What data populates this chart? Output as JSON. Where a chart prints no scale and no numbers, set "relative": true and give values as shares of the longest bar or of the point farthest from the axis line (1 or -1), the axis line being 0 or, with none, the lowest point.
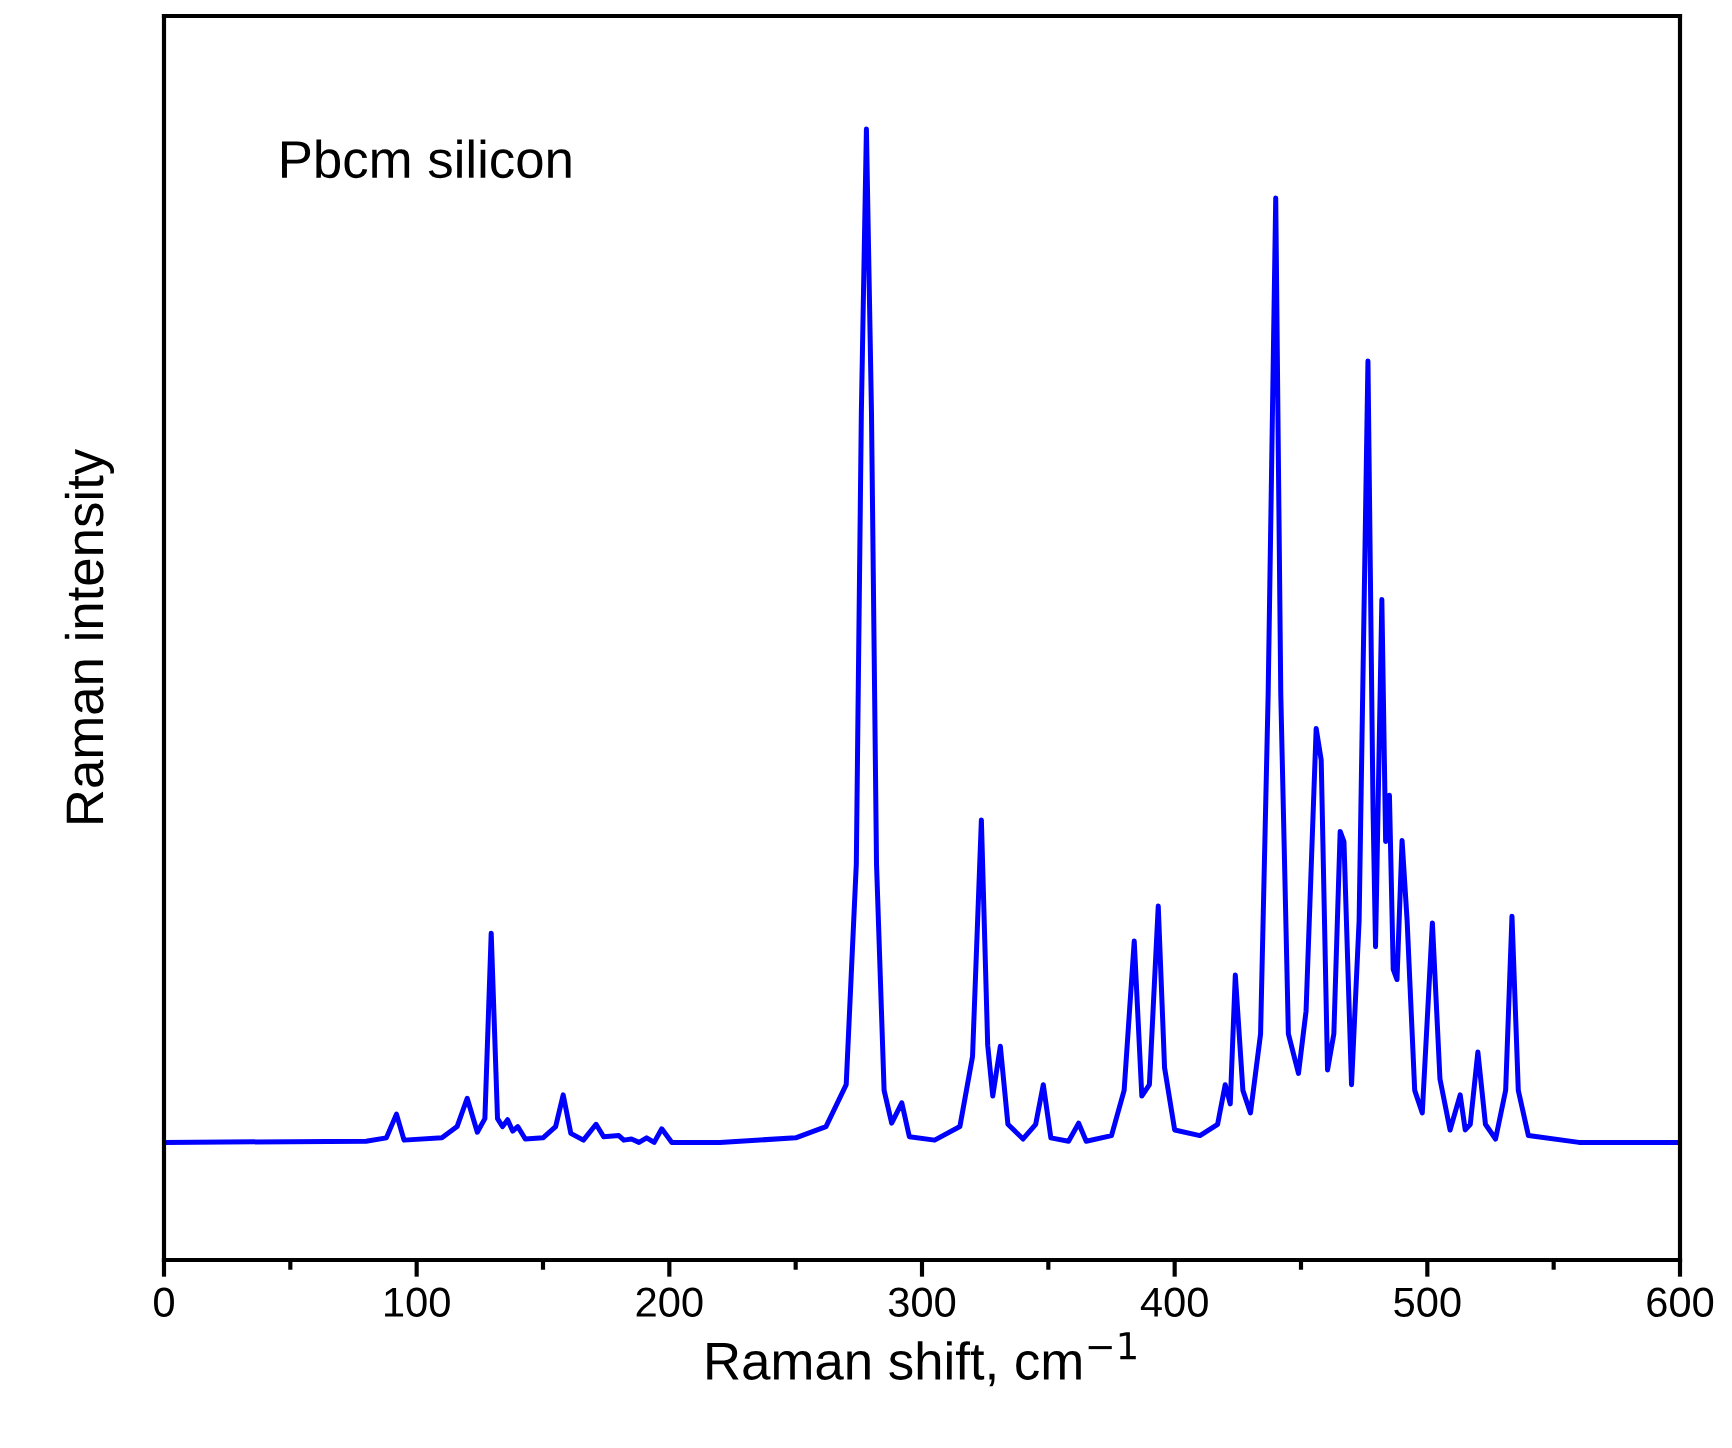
{
  "chart_data": {
    "type": "line",
    "relative": true,
    "xlabel": "Raman shift, cm$^{−1}$",
    "ylabel": "Raman intensity",
    "annotations": [
      "Pbcm silicon"
    ],
    "xlim": [
      0,
      600
    ],
    "xticks": [
      0,
      {
        "value": 50,
        "label": null
      },
      100,
      {
        "value": 150,
        "label": null
      },
      200,
      {
        "value": 250,
        "label": null
      },
      300,
      {
        "value": 350,
        "label": null
      },
      400,
      {
        "value": 450,
        "label": null
      },
      500,
      {
        "value": 550,
        "label": null
      },
      600
    ],
    "grid": false,
    "marker": "none",
    "line_style": "solid",
    "series": [
      {
        "color": "#0000ff",
        "x": [
          0,
          80,
          88,
          92,
          95,
          110,
          116,
          120,
          124,
          127,
          129.5,
          132,
          134,
          136,
          138,
          140,
          143,
          150,
          155,
          158,
          161,
          166,
          171,
          174,
          180,
          182,
          185,
          188,
          191,
          194,
          197,
          201,
          220,
          250,
          262,
          270,
          274,
          276,
          278,
          280,
          282,
          285,
          288,
          292,
          295,
          305,
          315,
          320,
          323.5,
          326,
          328,
          331,
          334,
          340,
          345,
          348,
          351,
          358,
          362,
          365,
          375,
          380,
          384,
          387,
          390,
          393.5,
          396,
          400,
          410,
          417,
          420,
          422,
          424,
          427,
          430,
          434,
          437,
          440,
          442,
          445,
          449,
          452,
          456,
          458,
          460.5,
          463,
          465.5,
          467,
          470,
          473,
          476.5,
          478.5,
          479.5,
          482,
          483.5,
          485,
          486.5,
          488,
          490,
          492,
          495,
          498,
          502,
          505,
          509,
          513,
          515,
          517,
          520,
          523,
          527,
          531,
          533.5,
          536,
          540,
          560,
          600
        ],
        "values": [
          0.104,
          0.105,
          0.108,
          0.129,
          0.106,
          0.108,
          0.118,
          0.143,
          0.113,
          0.125,
          0.289,
          0.125,
          0.118,
          0.124,
          0.114,
          0.118,
          0.107,
          0.108,
          0.118,
          0.146,
          0.112,
          0.106,
          0.12,
          0.109,
          0.11,
          0.106,
          0.107,
          0.104,
          0.108,
          0.104,
          0.116,
          0.104,
          0.104,
          0.108,
          0.118,
          0.155,
          0.35,
          0.75,
          1.0,
          0.75,
          0.35,
          0.15,
          0.121,
          0.139,
          0.109,
          0.106,
          0.118,
          0.18,
          0.389,
          0.19,
          0.145,
          0.189,
          0.12,
          0.107,
          0.12,
          0.155,
          0.108,
          0.105,
          0.121,
          0.105,
          0.11,
          0.15,
          0.282,
          0.145,
          0.155,
          0.313,
          0.17,
          0.115,
          0.11,
          0.12,
          0.155,
          0.138,
          0.252,
          0.15,
          0.13,
          0.2,
          0.5,
          0.939,
          0.5,
          0.2,
          0.165,
          0.22,
          0.47,
          0.442,
          0.168,
          0.2,
          0.379,
          0.37,
          0.155,
          0.3,
          0.795,
          0.4,
          0.277,
          0.584,
          0.37,
          0.411,
          0.257,
          0.248,
          0.371,
          0.3,
          0.15,
          0.13,
          0.298,
          0.16,
          0.115,
          0.146,
          0.115,
          0.12,
          0.184,
          0.12,
          0.107,
          0.15,
          0.304,
          0.15,
          0.11,
          0.104,
          0.104
        ]
      }
    ]
  }
}
